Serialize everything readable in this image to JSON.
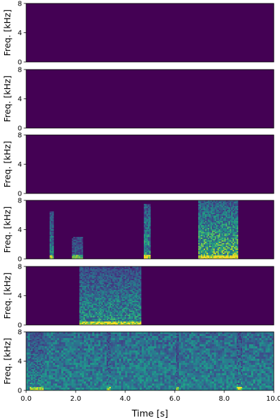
{
  "chart_data": {
    "type": "heatmap",
    "description_colormap": "viridis",
    "colors": {
      "low": "#440154",
      "mid": "#21918c",
      "high": "#fde725"
    },
    "xlabel": "Time [s]",
    "xlim": [
      0,
      10
    ],
    "xticks": [
      "0.0",
      "2.0",
      "4.0",
      "6.0",
      "8.0",
      "10.0"
    ],
    "panels": [
      {
        "ylabel": "Freq. [kHz]",
        "ylim": [
          0,
          8
        ],
        "yticks": [
          "0",
          "4",
          "8"
        ],
        "activity": []
      },
      {
        "ylabel": "Freq. [kHz]",
        "ylim": [
          0,
          8
        ],
        "yticks": [
          "0",
          "4",
          "8"
        ],
        "activity": []
      },
      {
        "ylabel": "Freq. [kHz]",
        "ylim": [
          0,
          8
        ],
        "yticks": [
          "0",
          "4",
          "8"
        ],
        "activity": []
      },
      {
        "ylabel": "Freq. [kHz]",
        "ylim": [
          0,
          8
        ],
        "yticks": [
          "0",
          "4",
          "8"
        ],
        "activity": [
          {
            "t0": 0.95,
            "t1": 1.1,
            "fmax": 6.5,
            "level": 0.55
          },
          {
            "t0": 1.85,
            "t1": 2.25,
            "fmax": 3.0,
            "level": 0.35
          },
          {
            "t0": 4.75,
            "t1": 5.0,
            "fmax": 7.5,
            "level": 0.65
          },
          {
            "t0": 6.95,
            "t1": 8.55,
            "fmax": 8.0,
            "level": 0.8
          }
        ]
      },
      {
        "ylabel": "Freq. [kHz]",
        "ylim": [
          0,
          8
        ],
        "yticks": [
          "0",
          "4",
          "8"
        ],
        "activity": [
          {
            "t0": 2.15,
            "t1": 4.6,
            "fmax": 8.0,
            "level": 0.6
          }
        ]
      },
      {
        "ylabel": "Freq. [kHz]",
        "ylim": [
          0,
          8
        ],
        "yticks": [
          "0",
          "4",
          "8"
        ],
        "noise_floor": 0.35,
        "activity": [
          {
            "t0": 0.15,
            "t1": 0.65,
            "fmax": 8.0,
            "level": 0.55
          },
          {
            "t0": 3.25,
            "t1": 3.4,
            "fmax": 8.0,
            "level": 0.5
          },
          {
            "t0": 6.05,
            "t1": 6.15,
            "fmax": 8.0,
            "level": 0.45
          },
          {
            "t0": 8.5,
            "t1": 8.7,
            "fmax": 8.0,
            "level": 0.55
          }
        ]
      }
    ]
  }
}
